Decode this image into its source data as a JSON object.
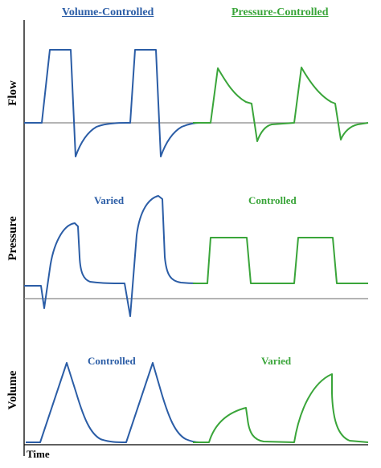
{
  "headers": {
    "volume_controlled": "Volume-Controlled",
    "pressure_controlled": "Pressure-Controlled"
  },
  "axis_labels": {
    "flow": "Flow",
    "pressure": "Pressure",
    "volume": "Volume",
    "time": "Time"
  },
  "annotations": {
    "pressure_volume_mode": "Varied",
    "pressure_pressure_mode": "Controlled",
    "volume_volume_mode": "Controlled",
    "volume_pressure_mode": "Varied"
  },
  "colors": {
    "volume_controlled": "#2b5da6",
    "pressure_controlled": "#3aa53a",
    "baseline": "#888888",
    "axis": "#000000"
  }
}
